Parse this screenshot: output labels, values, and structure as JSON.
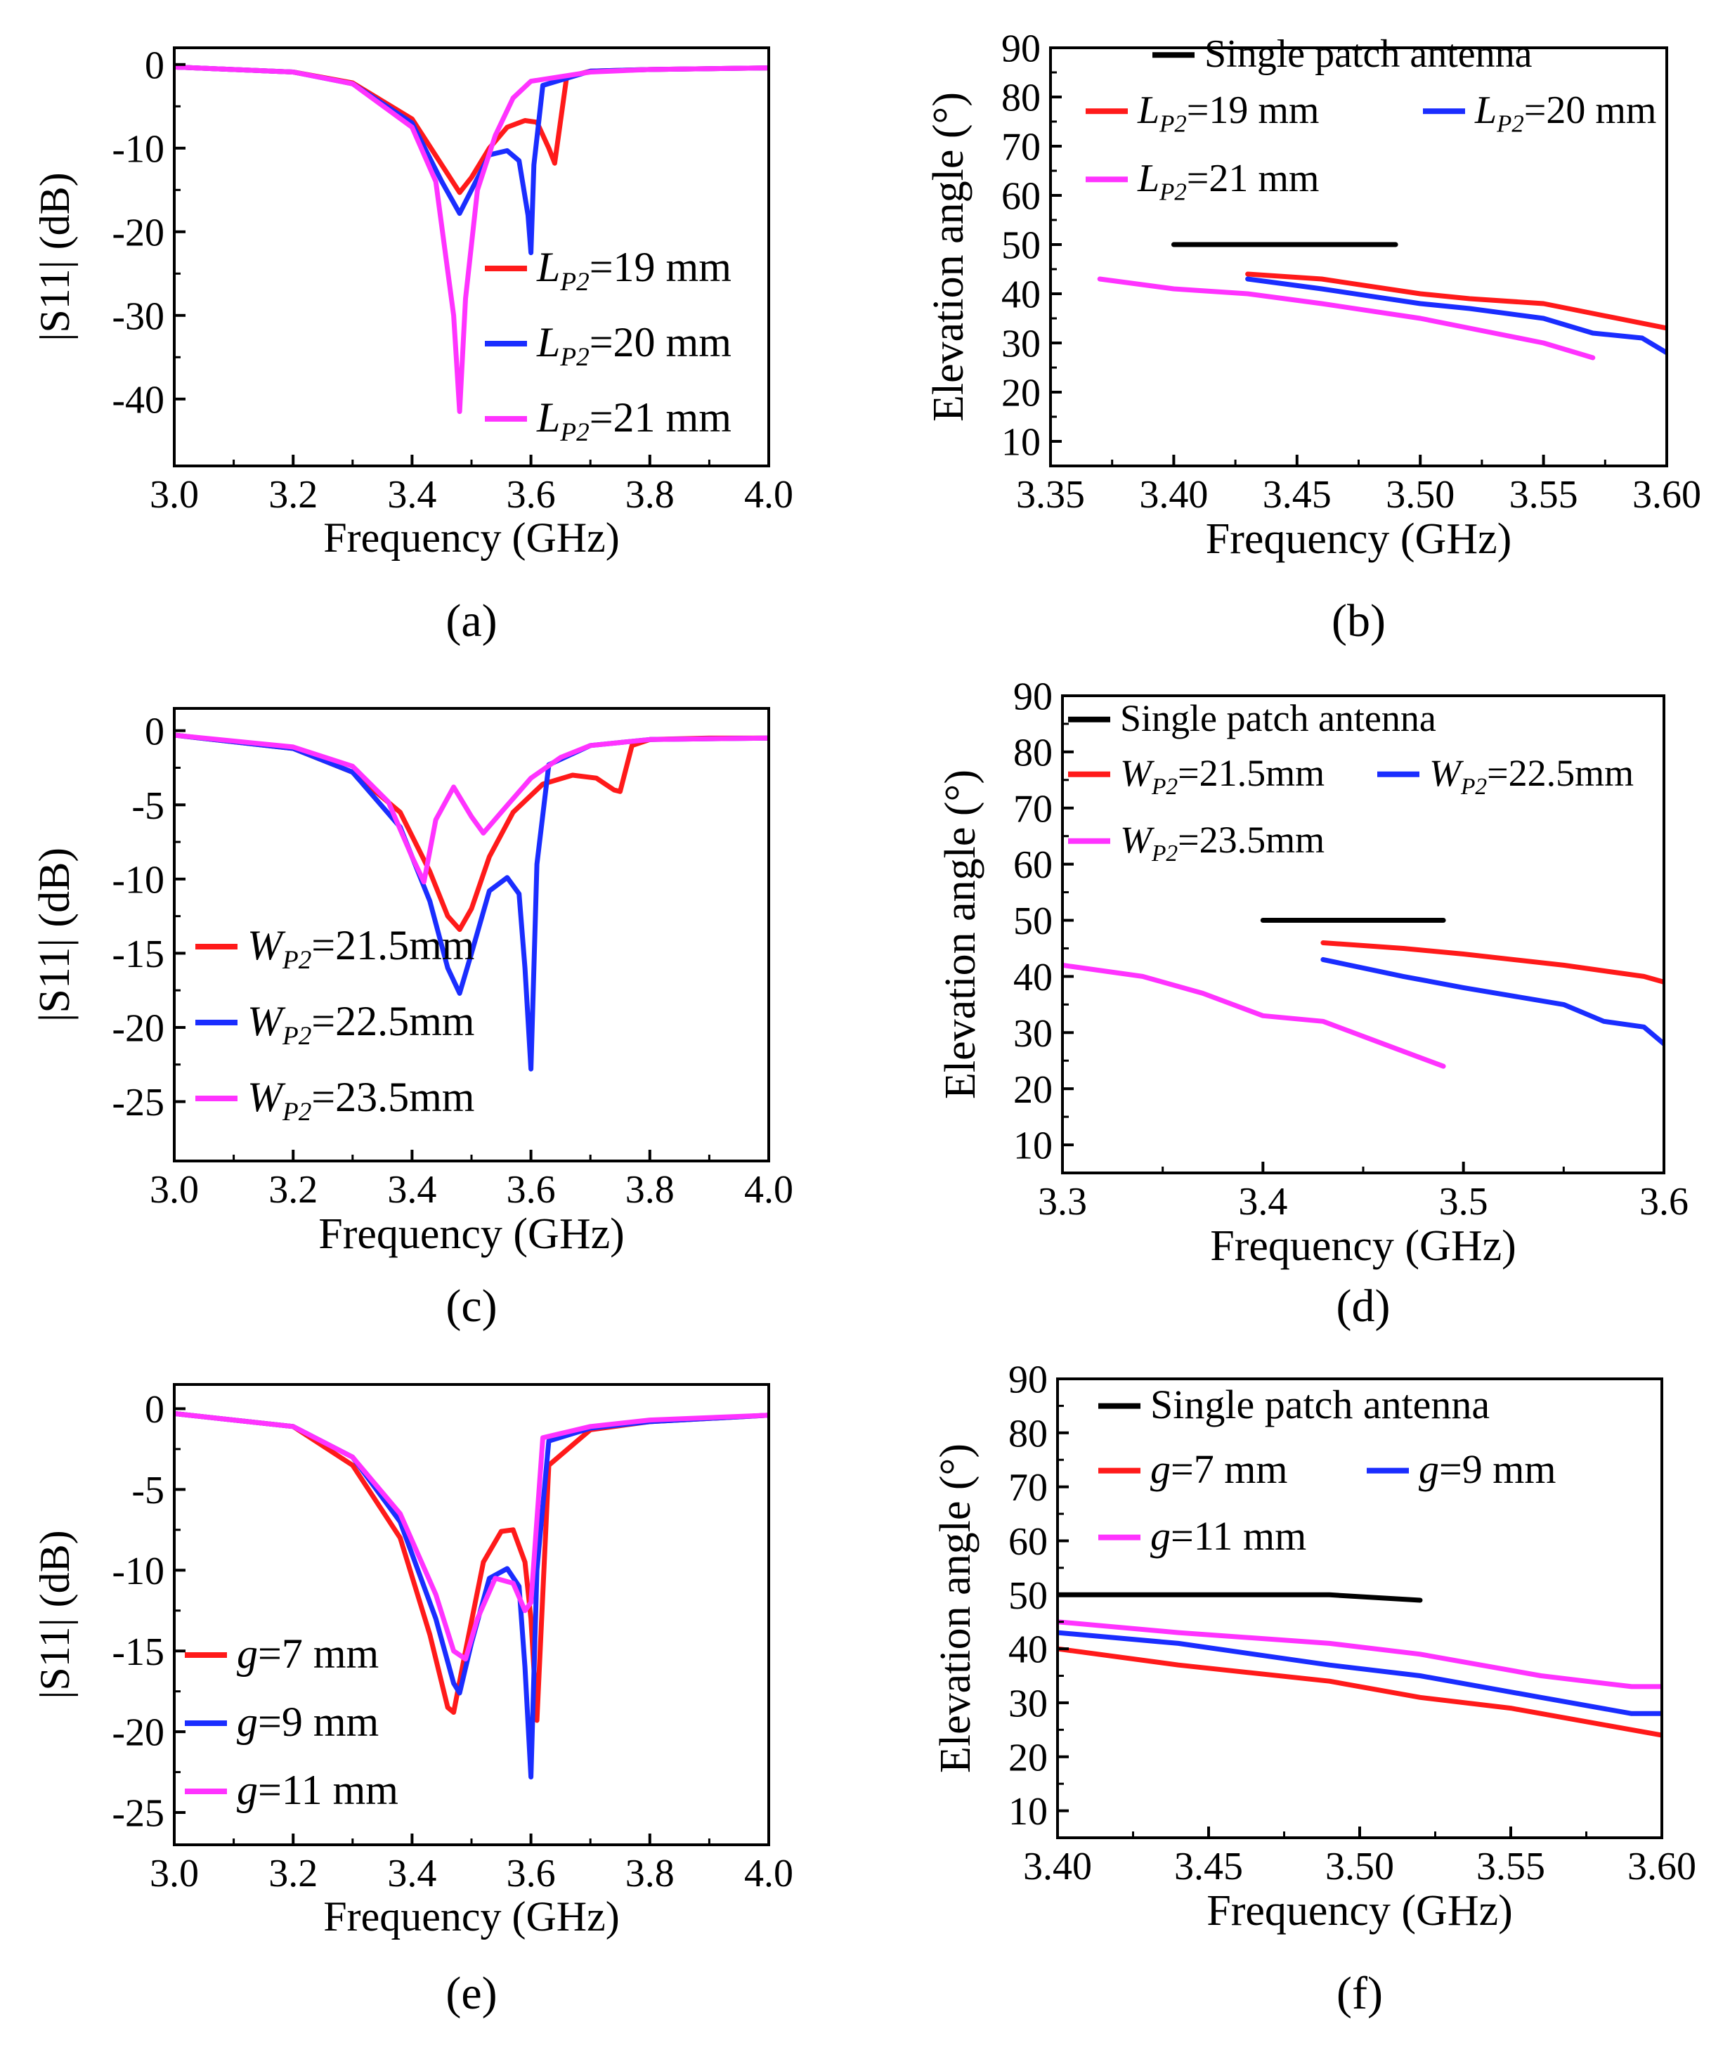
{
  "colors": {
    "red": "#ff1a1a",
    "blue": "#1a2dff",
    "magenta": "#ff33ff",
    "black": "#000000"
  },
  "chart_data": [
    {
      "id": "a",
      "type": "line",
      "caption": "(a)",
      "xlabel": "Frequency (GHz)",
      "ylabel": "|S11| (dB)",
      "xlim": [
        3.0,
        4.0
      ],
      "ylim": [
        -48,
        2
      ],
      "xticks": [
        "3.0",
        "3.2",
        "3.4",
        "3.6",
        "3.8",
        "4.0"
      ],
      "yticks": [
        "0",
        "-10",
        "-20",
        "-30",
        "-40"
      ],
      "legend_position": "bottom-right",
      "series": [
        {
          "name": "LP2=19 mm",
          "label_parts": [
            "L",
            "P2",
            "=19 mm"
          ],
          "color": "#ff1a1a",
          "x": [
            3.0,
            3.2,
            3.3,
            3.4,
            3.45,
            3.48,
            3.5,
            3.53,
            3.56,
            3.59,
            3.61,
            3.63,
            3.64,
            3.66,
            3.7,
            3.8,
            4.0
          ],
          "y": [
            -0.3,
            -0.9,
            -2.2,
            -6.5,
            -12,
            -15.3,
            -13.5,
            -10,
            -7.5,
            -6.7,
            -6.9,
            -10,
            -11.8,
            -1.5,
            -0.8,
            -0.6,
            -0.4
          ]
        },
        {
          "name": "LP2=20 mm",
          "label_parts": [
            "L",
            "P2",
            "=20 mm"
          ],
          "color": "#1a2dff",
          "x": [
            3.0,
            3.2,
            3.3,
            3.4,
            3.45,
            3.48,
            3.5,
            3.53,
            3.56,
            3.58,
            3.595,
            3.6,
            3.605,
            3.62,
            3.7,
            3.8,
            4.0
          ],
          "y": [
            -0.3,
            -0.9,
            -2.3,
            -7,
            -14,
            -17.8,
            -15,
            -10.8,
            -10.3,
            -11.5,
            -18,
            -22.5,
            -12,
            -2.5,
            -0.8,
            -0.6,
            -0.4
          ]
        },
        {
          "name": "LP2=21 mm",
          "label_parts": [
            "L",
            "P2",
            "=21 mm"
          ],
          "color": "#ff33ff",
          "x": [
            3.0,
            3.2,
            3.3,
            3.4,
            3.44,
            3.47,
            3.48,
            3.49,
            3.51,
            3.54,
            3.57,
            3.6,
            3.7,
            3.8,
            4.0
          ],
          "y": [
            -0.3,
            -0.9,
            -2.3,
            -7.5,
            -14,
            -30,
            -41.5,
            -28,
            -15,
            -8.5,
            -4,
            -2,
            -0.9,
            -0.6,
            -0.4
          ]
        }
      ]
    },
    {
      "id": "b",
      "type": "line",
      "caption": "(b)",
      "xlabel": "Frequency (GHz)",
      "ylabel": "Elevation angle (°)",
      "xlim": [
        3.35,
        3.6
      ],
      "ylim": [
        5,
        90
      ],
      "xticks": [
        "3.35",
        "3.40",
        "3.45",
        "3.50",
        "3.55",
        "3.60"
      ],
      "yticks": [
        "10",
        "20",
        "30",
        "40",
        "50",
        "60",
        "70",
        "80",
        "90"
      ],
      "legend_position": "top",
      "series": [
        {
          "name": "Single patch antenna",
          "label_parts": [
            "",
            "",
            "Single patch antenna"
          ],
          "color": "#000000",
          "x": [
            3.4,
            3.49
          ],
          "y": [
            50,
            50
          ]
        },
        {
          "name": "LP2=19 mm",
          "label_parts": [
            "L",
            "P2",
            "=19 mm"
          ],
          "color": "#ff1a1a",
          "x": [
            3.43,
            3.46,
            3.5,
            3.52,
            3.55,
            3.57,
            3.6
          ],
          "y": [
            44,
            43,
            40,
            39,
            38,
            36,
            33
          ]
        },
        {
          "name": "LP2=20 mm",
          "label_parts": [
            "L",
            "P2",
            "=20 mm"
          ],
          "color": "#1a2dff",
          "x": [
            3.43,
            3.46,
            3.5,
            3.52,
            3.55,
            3.57,
            3.59,
            3.6
          ],
          "y": [
            43,
            41,
            38,
            37,
            35,
            32,
            31,
            28
          ]
        },
        {
          "name": "LP2=21 mm",
          "label_parts": [
            "L",
            "P2",
            "=21 mm"
          ],
          "color": "#ff33ff",
          "x": [
            3.37,
            3.4,
            3.43,
            3.46,
            3.5,
            3.52,
            3.55,
            3.57
          ],
          "y": [
            43,
            41,
            40,
            38,
            35,
            33,
            30,
            27
          ]
        }
      ]
    },
    {
      "id": "c",
      "type": "line",
      "caption": "(c)",
      "xlabel": "Frequency (GHz)",
      "ylabel": "|S11| (dB)",
      "xlim": [
        3.0,
        4.0
      ],
      "ylim": [
        -29,
        1.5
      ],
      "xticks": [
        "3.0",
        "3.2",
        "3.4",
        "3.6",
        "3.8",
        "4.0"
      ],
      "yticks": [
        "0",
        "-5",
        "-10",
        "-15",
        "-20",
        "-25"
      ],
      "legend_position": "bottom-left",
      "series": [
        {
          "name": "WP2=21.5mm",
          "label_parts": [
            "W",
            "P2",
            "=21.5mm"
          ],
          "color": "#ff1a1a",
          "x": [
            3.0,
            3.2,
            3.3,
            3.38,
            3.43,
            3.46,
            3.48,
            3.5,
            3.53,
            3.57,
            3.62,
            3.67,
            3.71,
            3.74,
            3.75,
            3.77,
            3.8,
            3.9,
            4.0
          ],
          "y": [
            -0.3,
            -1.2,
            -2.8,
            -5.5,
            -9.5,
            -12.5,
            -13.4,
            -12,
            -8.5,
            -5.5,
            -3.6,
            -3,
            -3.2,
            -4,
            -4.1,
            -1,
            -0.6,
            -0.5,
            -0.5
          ]
        },
        {
          "name": "WP2=22.5mm",
          "label_parts": [
            "W",
            "P2",
            "=22.5mm"
          ],
          "color": "#1a2dff",
          "x": [
            3.0,
            3.2,
            3.3,
            3.38,
            3.43,
            3.46,
            3.48,
            3.5,
            3.53,
            3.56,
            3.58,
            3.59,
            3.6,
            3.61,
            3.63,
            3.7,
            3.8,
            4.0
          ],
          "y": [
            -0.3,
            -1.2,
            -2.8,
            -6.5,
            -11.5,
            -16,
            -17.7,
            -15,
            -10.8,
            -9.9,
            -11,
            -16,
            -22.8,
            -9,
            -2.3,
            -1,
            -0.6,
            -0.5
          ]
        },
        {
          "name": "WP2=23.5mm",
          "label_parts": [
            "W",
            "P2",
            "=23.5mm"
          ],
          "color": "#ff33ff",
          "x": [
            3.0,
            3.2,
            3.3,
            3.36,
            3.4,
            3.42,
            3.44,
            3.47,
            3.5,
            3.52,
            3.55,
            3.6,
            3.65,
            3.7,
            3.8,
            4.0
          ],
          "y": [
            -0.3,
            -1.1,
            -2.4,
            -4.8,
            -8.5,
            -10.2,
            -6,
            -3.8,
            -5.8,
            -6.9,
            -5.5,
            -3.2,
            -1.8,
            -1,
            -0.6,
            -0.5
          ]
        }
      ]
    },
    {
      "id": "d",
      "type": "line",
      "caption": "(d)",
      "xlabel": "Frequency (GHz)",
      "ylabel": "Elevation angle (°)",
      "xlim": [
        3.3,
        3.6
      ],
      "ylim": [
        5,
        90
      ],
      "xticks": [
        "3.3",
        "3.4",
        "3.5",
        "3.6"
      ],
      "yticks": [
        "10",
        "20",
        "30",
        "40",
        "50",
        "60",
        "70",
        "80",
        "90"
      ],
      "legend_position": "top",
      "series": [
        {
          "name": "Single patch antenna",
          "label_parts": [
            "",
            "",
            "Single patch antenna"
          ],
          "color": "#000000",
          "x": [
            3.4,
            3.49
          ],
          "y": [
            50,
            50
          ]
        },
        {
          "name": "WP2=21.5mm",
          "label_parts": [
            "W",
            "P2",
            "=21.5mm"
          ],
          "color": "#ff1a1a",
          "x": [
            3.43,
            3.47,
            3.5,
            3.55,
            3.59,
            3.6
          ],
          "y": [
            46,
            45,
            44,
            42,
            40,
            39
          ]
        },
        {
          "name": "WP2=22.5mm",
          "label_parts": [
            "W",
            "P2",
            "=22.5mm"
          ],
          "color": "#1a2dff",
          "x": [
            3.43,
            3.47,
            3.5,
            3.55,
            3.57,
            3.59,
            3.6
          ],
          "y": [
            43,
            40,
            38,
            35,
            32,
            31,
            28
          ]
        },
        {
          "name": "WP2=23.5mm",
          "label_parts": [
            "W",
            "P2",
            "=23.5mm"
          ],
          "color": "#ff33ff",
          "x": [
            3.3,
            3.34,
            3.37,
            3.4,
            3.43,
            3.46,
            3.49
          ],
          "y": [
            42,
            40,
            37,
            33,
            32,
            28,
            24
          ]
        }
      ]
    },
    {
      "id": "e",
      "type": "line",
      "caption": "(e)",
      "xlabel": "Frequency (GHz)",
      "ylabel": "|S11| (dB)",
      "xlim": [
        3.0,
        4.0
      ],
      "ylim": [
        -27,
        1.5
      ],
      "xticks": [
        "3.0",
        "3.2",
        "3.4",
        "3.6",
        "3.8",
        "4.0"
      ],
      "yticks": [
        "0",
        "-5",
        "-10",
        "-15",
        "-20",
        "-25"
      ],
      "legend_position": "bottom-left",
      "series": [
        {
          "name": "g=7 mm",
          "label_parts": [
            "g",
            "",
            "=7 mm"
          ],
          "color": "#ff1a1a",
          "x": [
            3.0,
            3.2,
            3.3,
            3.38,
            3.43,
            3.46,
            3.47,
            3.49,
            3.52,
            3.55,
            3.57,
            3.59,
            3.6,
            3.61,
            3.63,
            3.7,
            3.8,
            4.0
          ],
          "y": [
            -0.3,
            -1.1,
            -3.5,
            -8,
            -14,
            -18.5,
            -18.8,
            -15,
            -9.5,
            -7.6,
            -7.5,
            -9.5,
            -13,
            -19.3,
            -3.5,
            -1.3,
            -0.8,
            -0.4
          ]
        },
        {
          "name": "g=9 mm",
          "label_parts": [
            "g",
            "",
            "=9 mm"
          ],
          "color": "#1a2dff",
          "x": [
            3.0,
            3.2,
            3.3,
            3.38,
            3.44,
            3.47,
            3.48,
            3.5,
            3.53,
            3.56,
            3.58,
            3.59,
            3.6,
            3.61,
            3.63,
            3.7,
            3.8,
            4.0
          ],
          "y": [
            -0.3,
            -1.1,
            -3,
            -7,
            -13,
            -17,
            -17.6,
            -14.5,
            -10.5,
            -9.9,
            -11,
            -16,
            -22.8,
            -10,
            -2,
            -1.2,
            -0.8,
            -0.4
          ]
        },
        {
          "name": "g=11 mm",
          "label_parts": [
            "g",
            "",
            "=11 mm"
          ],
          "color": "#ff33ff",
          "x": [
            3.0,
            3.2,
            3.3,
            3.38,
            3.44,
            3.47,
            3.49,
            3.51,
            3.54,
            3.57,
            3.59,
            3.6,
            3.62,
            3.7,
            3.8,
            4.0
          ],
          "y": [
            -0.3,
            -1.1,
            -3,
            -6.5,
            -11.5,
            -15,
            -15.5,
            -13,
            -10.5,
            -10.8,
            -12.5,
            -12,
            -1.8,
            -1.1,
            -0.7,
            -0.4
          ]
        }
      ]
    },
    {
      "id": "f",
      "type": "line",
      "caption": "(f)",
      "xlabel": "Frequency (GHz)",
      "ylabel": "Elevation angle (°)",
      "xlim": [
        3.4,
        3.6
      ],
      "ylim": [
        5,
        90
      ],
      "xticks": [
        "3.40",
        "3.45",
        "3.50",
        "3.55",
        "3.60"
      ],
      "yticks": [
        "10",
        "20",
        "30",
        "40",
        "50",
        "60",
        "70",
        "80",
        "90"
      ],
      "legend_position": "top",
      "series": [
        {
          "name": "Single patch antenna",
          "label_parts": [
            "",
            "",
            "Single patch antenna"
          ],
          "color": "#000000",
          "x": [
            3.4,
            3.49,
            3.52
          ],
          "y": [
            50,
            50,
            49
          ]
        },
        {
          "name": "g=7 mm",
          "label_parts": [
            "g",
            "",
            "=7 mm"
          ],
          "color": "#ff1a1a",
          "x": [
            3.4,
            3.44,
            3.49,
            3.52,
            3.55,
            3.58,
            3.6
          ],
          "y": [
            40,
            37,
            34,
            31,
            29,
            26,
            24
          ]
        },
        {
          "name": "g=9 mm",
          "label_parts": [
            "g",
            "",
            "=9 mm"
          ],
          "color": "#1a2dff",
          "x": [
            3.4,
            3.44,
            3.49,
            3.52,
            3.56,
            3.59,
            3.6
          ],
          "y": [
            43,
            41,
            37,
            35,
            31,
            28,
            28
          ]
        },
        {
          "name": "g=11 mm",
          "label_parts": [
            "g",
            "",
            "=11 mm"
          ],
          "color": "#ff33ff",
          "x": [
            3.4,
            3.44,
            3.49,
            3.52,
            3.56,
            3.59,
            3.6
          ],
          "y": [
            45,
            43,
            41,
            39,
            35,
            33,
            33
          ]
        }
      ]
    }
  ]
}
